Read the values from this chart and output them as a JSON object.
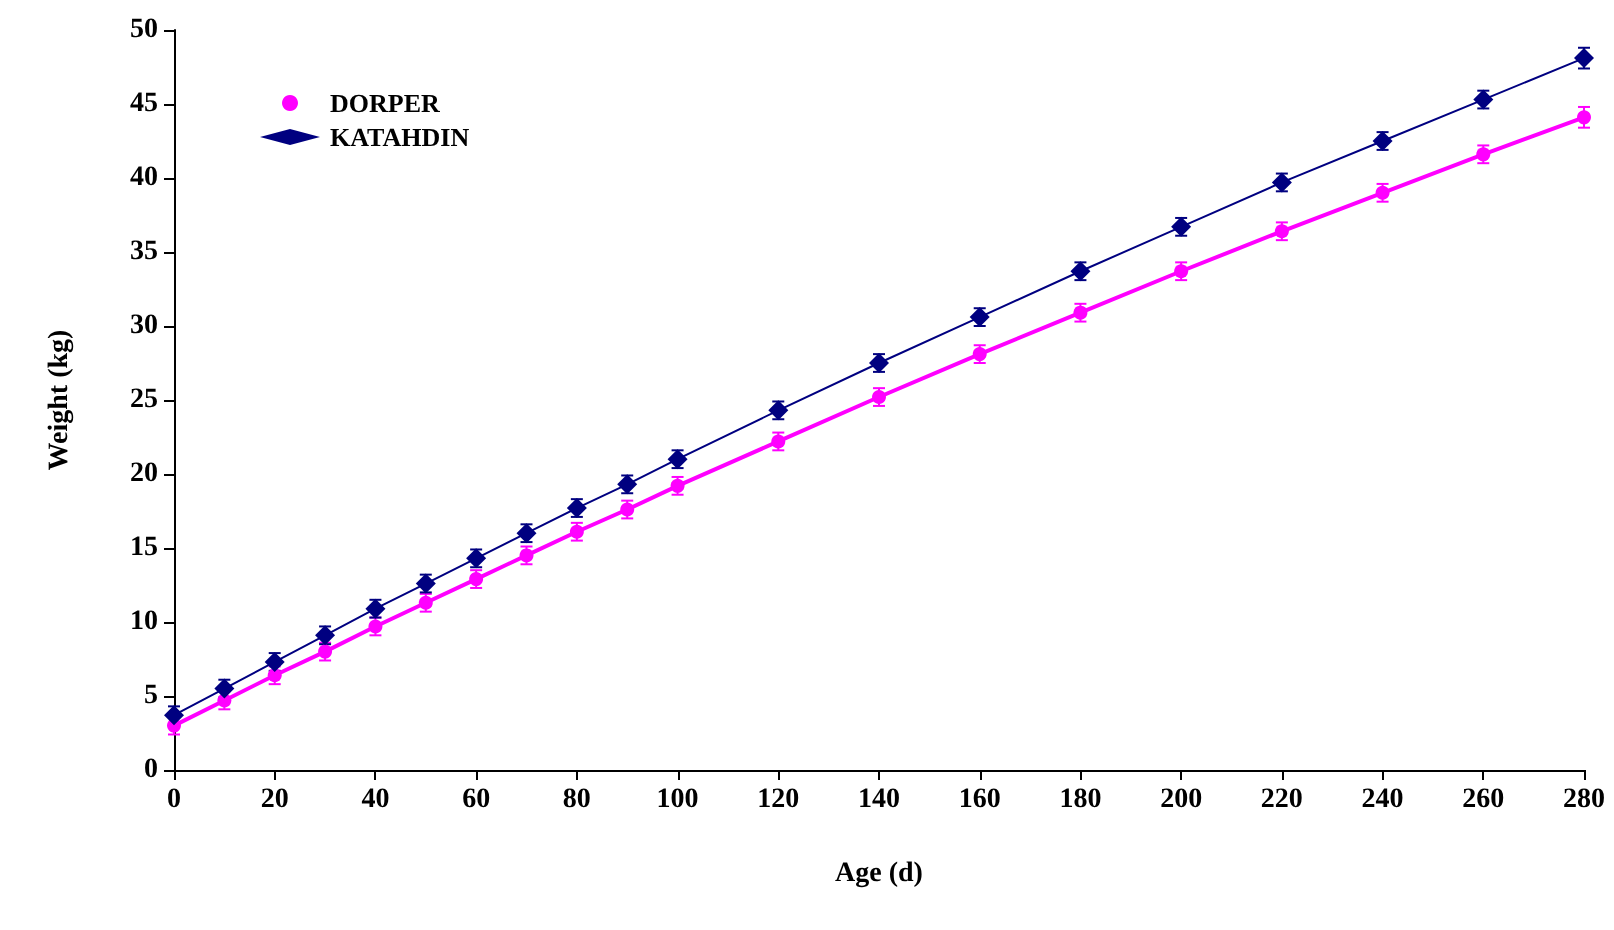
{
  "chart_data": {
    "type": "line",
    "xlabel": "Age (d)",
    "ylabel": "Weight (kg)",
    "x": [
      0,
      10,
      20,
      30,
      40,
      50,
      60,
      70,
      80,
      90,
      100,
      120,
      140,
      160,
      180,
      200,
      220,
      240,
      260,
      280
    ],
    "series": [
      {
        "name": "DORPER",
        "color": "#ff00ff",
        "marker": "circle",
        "values": [
          3.0,
          4.7,
          6.4,
          8.0,
          9.7,
          11.3,
          12.9,
          14.5,
          16.1,
          17.6,
          19.2,
          22.2,
          25.2,
          28.1,
          30.9,
          33.7,
          36.4,
          39.0,
          41.6,
          44.1
        ],
        "errors": [
          0.6,
          0.6,
          0.6,
          0.6,
          0.6,
          0.6,
          0.6,
          0.6,
          0.6,
          0.6,
          0.6,
          0.6,
          0.6,
          0.6,
          0.6,
          0.6,
          0.6,
          0.6,
          0.6,
          0.7
        ]
      },
      {
        "name": "KATAHDIN",
        "color": "#000080",
        "marker": "diamond",
        "values": [
          3.7,
          5.5,
          7.3,
          9.1,
          10.9,
          12.6,
          14.3,
          16.0,
          17.7,
          19.3,
          21.0,
          24.3,
          27.5,
          30.6,
          33.7,
          36.7,
          39.7,
          42.5,
          45.3,
          48.1
        ],
        "errors": [
          0.6,
          0.6,
          0.6,
          0.6,
          0.6,
          0.6,
          0.6,
          0.6,
          0.6,
          0.6,
          0.6,
          0.6,
          0.6,
          0.6,
          0.6,
          0.6,
          0.6,
          0.6,
          0.6,
          0.7
        ]
      }
    ],
    "xlim": [
      0,
      280
    ],
    "xticks": [
      0,
      20,
      40,
      60,
      80,
      100,
      120,
      140,
      160,
      180,
      200,
      220,
      240,
      260,
      280
    ],
    "ylim": [
      0,
      50
    ],
    "yticks": [
      0,
      5,
      10,
      15,
      20,
      25,
      30,
      35,
      40,
      45,
      50
    ],
    "grid": false,
    "legend": "top left",
    "line_style": "solid"
  }
}
